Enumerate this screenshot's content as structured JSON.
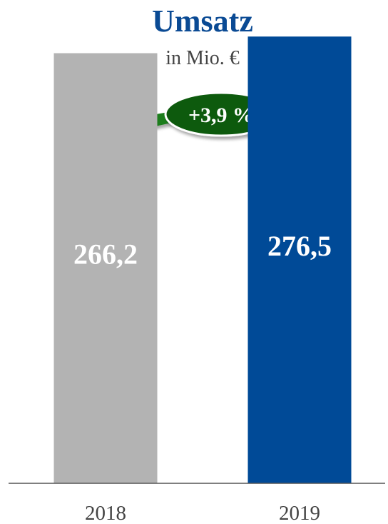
{
  "chart_data": {
    "type": "bar",
    "title": "Umsatz",
    "subtitle": "in Mio. €",
    "categories": [
      "2018",
      "2019"
    ],
    "values": [
      266.2,
      276.5
    ],
    "value_labels": [
      "266,2",
      "276,5"
    ],
    "ylim": [
      0,
      300
    ],
    "grid": false,
    "legend": "none",
    "growth_label": "+3,9 %"
  },
  "colors": {
    "title": "#0a4a94",
    "subtitle": "#444444",
    "bars": [
      "#b3b3b3",
      "#004a97"
    ],
    "value_label": "#ffffff",
    "arrow": "#1e7d1e",
    "arrow_dark": "#0d5a0d",
    "axis": "#555555",
    "category_label": "#444444"
  }
}
